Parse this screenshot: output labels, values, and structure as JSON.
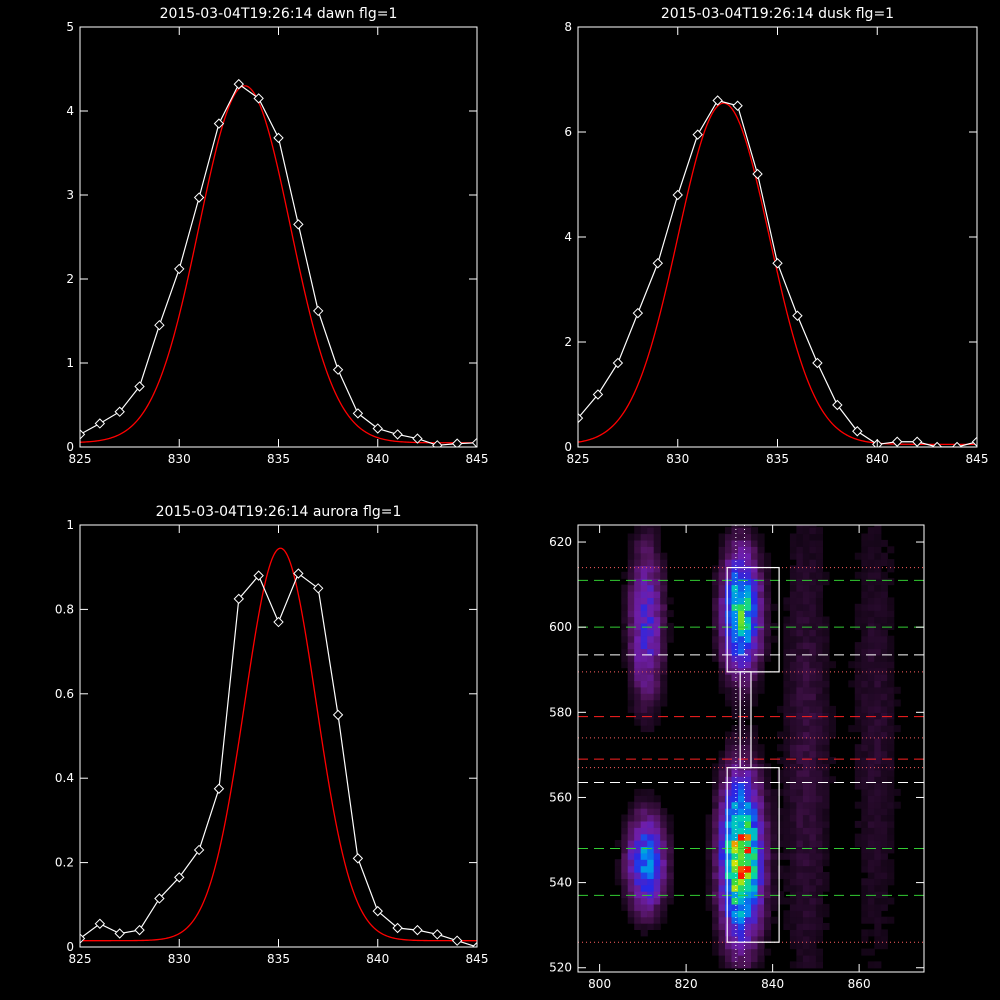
{
  "chart_data": [
    {
      "type": "line",
      "title": "2015-03-04T19:26:14 dawn flg=1",
      "xlim": [
        825,
        845
      ],
      "ylim": [
        0,
        5
      ],
      "xticks": [
        825,
        830,
        835,
        840,
        845
      ],
      "yticks": [
        0,
        1,
        2,
        3,
        4,
        5
      ],
      "series": [
        {
          "kind": "data",
          "color": "#ffffff",
          "x": [
            825,
            826,
            827,
            828,
            829,
            830,
            831,
            832,
            833,
            834,
            835,
            836,
            837,
            838,
            839,
            840,
            841,
            842,
            843,
            844,
            845
          ],
          "y": [
            0.15,
            0.28,
            0.42,
            0.72,
            1.45,
            2.12,
            2.97,
            3.85,
            4.32,
            4.15,
            3.68,
            2.65,
            1.62,
            0.92,
            0.4,
            0.22,
            0.15,
            0.1,
            0.02,
            0.04,
            0.05
          ]
        },
        {
          "kind": "fit",
          "color": "#ff0000",
          "amplitude": 4.25,
          "center": 833.3,
          "sigma": 2.3,
          "offset": 0.05
        }
      ]
    },
    {
      "type": "line",
      "title": "2015-03-04T19:26:14 dusk flg=1",
      "xlim": [
        825,
        845
      ],
      "ylim": [
        0,
        8
      ],
      "xticks": [
        825,
        830,
        835,
        840,
        845
      ],
      "yticks": [
        0,
        2,
        4,
        6,
        8
      ],
      "series": [
        {
          "kind": "data",
          "color": "#ffffff",
          "x": [
            825,
            826,
            827,
            828,
            829,
            830,
            831,
            832,
            833,
            834,
            835,
            836,
            837,
            838,
            839,
            840,
            841,
            842,
            843,
            844,
            845
          ],
          "y": [
            0.55,
            1.0,
            1.6,
            2.55,
            3.5,
            4.8,
            5.95,
            6.6,
            6.5,
            5.2,
            3.5,
            2.5,
            1.6,
            0.8,
            0.3,
            0.05,
            0.1,
            0.1,
            0.0,
            0.0,
            0.1
          ]
        },
        {
          "kind": "fit",
          "color": "#ff0000",
          "amplitude": 6.5,
          "center": 832.3,
          "sigma": 2.3,
          "offset": 0.05
        }
      ]
    },
    {
      "type": "line",
      "title": "2015-03-04T19:26:14 aurora flg=1",
      "xlim": [
        825,
        845
      ],
      "ylim": [
        0,
        1.0
      ],
      "xticks": [
        825,
        830,
        835,
        840,
        845
      ],
      "yticks": [
        0.0,
        0.2,
        0.4,
        0.6,
        0.8,
        1.0
      ],
      "series": [
        {
          "kind": "data",
          "color": "#ffffff",
          "x": [
            825,
            826,
            827,
            828,
            829,
            830,
            831,
            832,
            833,
            834,
            835,
            836,
            837,
            838,
            839,
            840,
            841,
            842,
            843,
            844,
            845
          ],
          "y": [
            0.02,
            0.055,
            0.032,
            0.04,
            0.115,
            0.165,
            0.23,
            0.375,
            0.825,
            0.88,
            0.77,
            0.885,
            0.85,
            0.55,
            0.21,
            0.085,
            0.045,
            0.04,
            0.03,
            0.015,
            0.0
          ]
        },
        {
          "kind": "fit",
          "color": "#ff0000",
          "amplitude": 0.93,
          "center": 835.1,
          "sigma": 1.8,
          "offset": 0.015
        }
      ]
    },
    {
      "type": "heatmap",
      "title": "",
      "xlim": [
        795,
        875
      ],
      "ylim": [
        519,
        624
      ],
      "xticks": [
        800,
        820,
        840,
        860
      ],
      "yticks": [
        520,
        540,
        560,
        580,
        600,
        620
      ],
      "blobs": [
        {
          "cx": 832,
          "cy": 545,
          "sx": 3.0,
          "sy": 12,
          "a": 1.0
        },
        {
          "cx": 832,
          "cy": 603,
          "sx": 2.8,
          "sy": 9,
          "a": 0.72
        },
        {
          "cx": 810,
          "cy": 544,
          "sx": 2.8,
          "sy": 7,
          "a": 0.55
        },
        {
          "cx": 810,
          "cy": 600,
          "sx": 2.5,
          "sy": 12,
          "a": 0.34
        },
        {
          "cx": 847,
          "cy": 570,
          "sx": 4.0,
          "sy": 45,
          "a": 0.08
        },
        {
          "cx": 863,
          "cy": 575,
          "sx": 4.0,
          "sy": 45,
          "a": 0.06
        }
      ],
      "boxes": [
        {
          "x0": 829.5,
          "x1": 841.5,
          "y0": 589.5,
          "y1": 614
        },
        {
          "x0": 829.5,
          "x1": 841.5,
          "y0": 526,
          "y1": 567
        },
        {
          "x0": 832.5,
          "x1": 835,
          "y0": 567,
          "y1": 589.5
        }
      ],
      "hlines": [
        {
          "y": 611,
          "color": "#33cc33",
          "style": "dashed"
        },
        {
          "y": 600,
          "color": "#33cc33",
          "style": "dashed"
        },
        {
          "y": 593.5,
          "color": "#ffffff",
          "style": "dashed"
        },
        {
          "y": 579,
          "color": "#ff2020",
          "style": "dashed"
        },
        {
          "y": 569,
          "color": "#ff2020",
          "style": "dashed"
        },
        {
          "y": 563.5,
          "color": "#ffffff",
          "style": "dashed"
        },
        {
          "y": 548,
          "color": "#33cc33",
          "style": "dashed"
        },
        {
          "y": 537,
          "color": "#33cc33",
          "style": "dashed"
        },
        {
          "y": 614,
          "color": "#ff6060",
          "style": "dotted"
        },
        {
          "y": 589.5,
          "color": "#ff6060",
          "style": "dotted"
        },
        {
          "y": 574,
          "color": "#ff6060",
          "style": "dotted"
        },
        {
          "y": 567,
          "color": "#ff6060",
          "style": "dotted"
        },
        {
          "y": 526,
          "color": "#ff6060",
          "style": "dotted"
        }
      ],
      "vlines": [
        {
          "x": 831.5,
          "color": "#ffffff",
          "style": "dotted"
        },
        {
          "x": 833.5,
          "color": "#ffffff",
          "style": "dotted"
        }
      ]
    }
  ]
}
